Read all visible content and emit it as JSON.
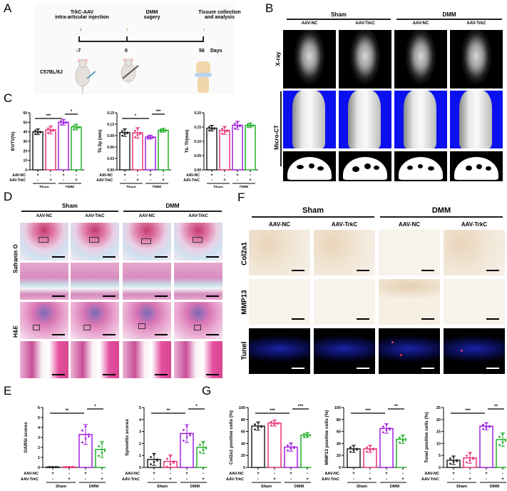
{
  "panels": {
    "A": {
      "label": "A",
      "timeline": {
        "events": [
          {
            "title_line1": "TrkC-AAV",
            "title_line2": "intra-articular injection",
            "day": "-7",
            "arrow_color": "#222222"
          },
          {
            "title_line1": "DMM",
            "title_line2": "sugery",
            "day": "0",
            "arrow_color": "#b5651d"
          },
          {
            "title_line1": "Tissure collection",
            "title_line2": "and analysis",
            "day": "56",
            "arrow_color": "#b5651d"
          }
        ],
        "unit": "Days",
        "strain": "C57BL/6J"
      }
    },
    "B": {
      "label": "B",
      "groups": [
        "Sham",
        "DMM"
      ],
      "columns": [
        "AAV-NC",
        "AAV-TrkC",
        "AAV-NC",
        "AAV-TrkC"
      ],
      "rows": [
        "X-ray",
        "Micro-CT"
      ]
    },
    "C": {
      "label": "C"
    },
    "D": {
      "label": "D",
      "groups": [
        "Sham",
        "DMM"
      ],
      "columns": [
        "AAV-NC",
        "AAV-TrkC",
        "AAV-NC",
        "AAV-TrkC"
      ],
      "rows": [
        "Safranin O",
        "H&E"
      ]
    },
    "E": {
      "label": "E"
    },
    "F": {
      "label": "F",
      "groups": [
        "Sham",
        "DMM"
      ],
      "columns": [
        "AAV-NC",
        "AAV-TrkC",
        "AAV-NC",
        "AAV-TrkC"
      ],
      "rows": [
        "Col2a1",
        "MMP13",
        "Tunel"
      ]
    },
    "G": {
      "label": "G"
    }
  },
  "axis_rows": {
    "row1": "AAV-NC",
    "row2": "AAV-TrkC",
    "row1_signs": [
      "+",
      "-",
      "+",
      "-"
    ],
    "row2_signs": [
      "-",
      "+",
      "-",
      "+"
    ],
    "groups": [
      "Sham",
      "DMM"
    ]
  },
  "colors": {
    "sham_nc": "#222222",
    "sham_trkc": "#e8337a",
    "dmm_nc": "#a020e0",
    "dmm_trkc": "#22b02a",
    "microct_bg": "#0a10f0"
  },
  "chart_data": [
    {
      "id": "C1",
      "type": "bar",
      "ylabel": "BV/TV(%)",
      "ylim": [
        0,
        60
      ],
      "yticks": [
        0,
        10,
        20,
        30,
        40,
        50,
        60
      ],
      "categories": [
        "Sham AAV-NC",
        "Sham AAV-TrkC",
        "DMM AAV-NC",
        "DMM AAV-TrkC"
      ],
      "values": [
        40,
        42,
        50,
        45
      ],
      "errors": [
        3,
        4,
        3,
        3
      ],
      "significance": [
        {
          "from": 0,
          "to": 2,
          "label": "***"
        },
        {
          "from": 2,
          "to": 3,
          "label": "*"
        }
      ]
    },
    {
      "id": "C2",
      "type": "bar",
      "ylabel": "Tb.Sp (mm)",
      "ylim": [
        0,
        0.15
      ],
      "yticks": [
        "0.00",
        "0.03",
        "0.06",
        "0.09",
        "0.12",
        "0.15"
      ],
      "categories": [
        "Sham AAV-NC",
        "Sham AAV-TrkC",
        "DMM AAV-NC",
        "DMM AAV-TrkC"
      ],
      "values": [
        0.098,
        0.097,
        0.086,
        0.104
      ],
      "errors": [
        0.01,
        0.014,
        0.005,
        0.005
      ],
      "significance": [
        {
          "from": 0,
          "to": 2,
          "label": "*"
        },
        {
          "from": 2,
          "to": 3,
          "label": "***"
        }
      ]
    },
    {
      "id": "C3",
      "type": "bar",
      "ylabel": "Tb. Th(mm)",
      "ylim": [
        0,
        0.2
      ],
      "yticks": [
        "0.00",
        "0.05",
        "0.10",
        "0.15",
        "0.20"
      ],
      "categories": [
        "Sham AAV-NC",
        "Sham AAV-TrkC",
        "DMM AAV-NC",
        "DMM AAV-TrkC"
      ],
      "values": [
        0.146,
        0.138,
        0.156,
        0.156
      ],
      "errors": [
        0.01,
        0.014,
        0.014,
        0.008
      ],
      "significance": []
    },
    {
      "id": "E1",
      "type": "bar",
      "ylabel": "OARSI scores",
      "ylim": [
        0,
        6
      ],
      "yticks": [
        0,
        1,
        2,
        3,
        4,
        5,
        6
      ],
      "categories": [
        "Sham AAV-NC",
        "Sham AAV-TrkC",
        "DMM AAV-NC",
        "DMM AAV-TrkC"
      ],
      "values": [
        0.05,
        0.05,
        3.3,
        1.8
      ],
      "errors": [
        0,
        0,
        1.0,
        0.8
      ],
      "significance": [
        {
          "from": 0,
          "to": 2,
          "label": "**"
        },
        {
          "from": 2,
          "to": 3,
          "label": "*"
        }
      ]
    },
    {
      "id": "E2",
      "type": "bar",
      "ylabel": "Synovitis scores",
      "ylim": [
        0,
        5
      ],
      "yticks": [
        0,
        1,
        2,
        3,
        4,
        5
      ],
      "categories": [
        "Sham AAV-NC",
        "Sham AAV-TrkC",
        "DMM AAV-NC",
        "DMM AAV-TrkC"
      ],
      "values": [
        0.67,
        0.5,
        2.83,
        1.67
      ],
      "errors": [
        0.5,
        0.55,
        0.75,
        0.5
      ],
      "significance": [
        {
          "from": 0,
          "to": 2,
          "label": "**"
        },
        {
          "from": 2,
          "to": 3,
          "label": "*"
        }
      ]
    },
    {
      "id": "G1",
      "type": "bar",
      "ylabel": "Col2a1 positive cells (%)",
      "ylim": [
        0,
        100
      ],
      "yticks": [
        0,
        20,
        40,
        60,
        80,
        100
      ],
      "categories": [
        "Sham AAV-NC",
        "Sham AAV-TrkC",
        "DMM AAV-NC",
        "DMM AAV-TrkC"
      ],
      "values": [
        69,
        74,
        34,
        54
      ],
      "errors": [
        7,
        5,
        7,
        4
      ],
      "significance": [
        {
          "from": 0,
          "to": 2,
          "label": "***"
        },
        {
          "from": 2,
          "to": 3,
          "label": "***"
        }
      ]
    },
    {
      "id": "G2",
      "type": "bar",
      "ylabel": "MMP13 positive cells (%)",
      "ylim": [
        0,
        100
      ],
      "yticks": [
        0,
        20,
        40,
        60,
        80,
        100
      ],
      "categories": [
        "Sham AAV-NC",
        "Sham AAV-TrkC",
        "DMM AAV-NC",
        "DMM AAV-TrkC"
      ],
      "values": [
        31,
        31,
        65,
        47
      ],
      "errors": [
        6,
        6,
        8,
        7
      ],
      "significance": [
        {
          "from": 0,
          "to": 2,
          "label": "***"
        },
        {
          "from": 2,
          "to": 3,
          "label": "**"
        }
      ]
    },
    {
      "id": "G3",
      "type": "bar",
      "ylabel": "Tunel positive cells (%)",
      "ylim": [
        0,
        25
      ],
      "yticks": [
        0,
        5,
        10,
        15,
        20,
        25
      ],
      "categories": [
        "Sham AAV-NC",
        "Sham AAV-TrkC",
        "DMM AAV-NC",
        "DMM AAV-TrkC"
      ],
      "values": [
        3,
        4,
        17.2,
        11.6
      ],
      "errors": [
        1.8,
        2.3,
        1.5,
        2.8
      ],
      "significance": [
        {
          "from": 0,
          "to": 2,
          "label": "***"
        },
        {
          "from": 2,
          "to": 3,
          "label": "**"
        }
      ]
    }
  ]
}
